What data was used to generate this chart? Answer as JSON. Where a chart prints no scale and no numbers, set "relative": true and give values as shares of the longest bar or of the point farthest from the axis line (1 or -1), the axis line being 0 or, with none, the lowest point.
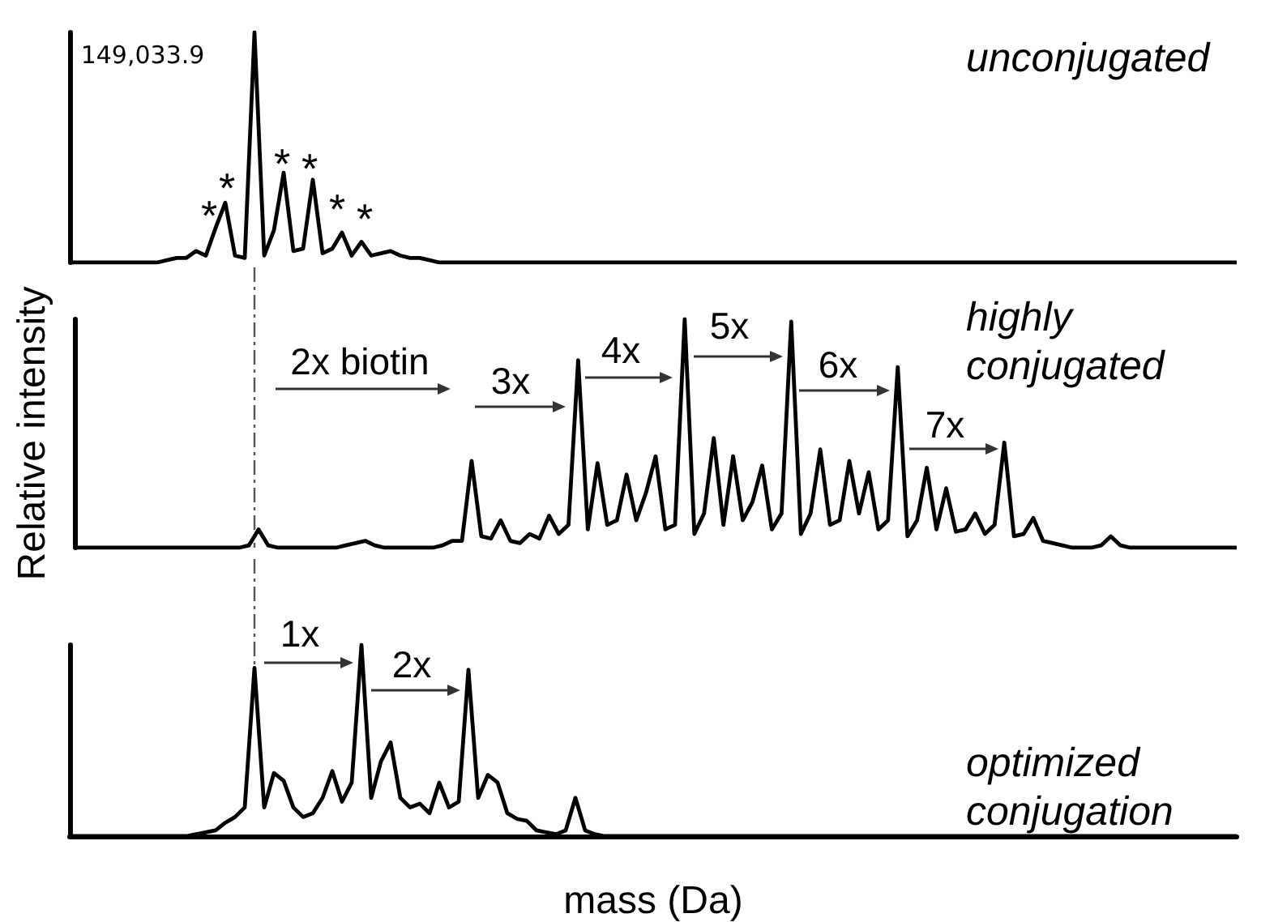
{
  "chart_data": [
    {
      "type": "line",
      "title": "unconjugated",
      "relative": true,
      "line_style": "solid",
      "annotations": [
        "149,033.9",
        "*",
        "*",
        "*",
        "*",
        "*",
        "*"
      ],
      "categories": [
        null,
        null,
        null,
        null,
        null,
        null,
        null,
        null,
        null,
        null,
        null,
        null,
        null,
        null,
        null,
        null,
        null,
        null,
        null,
        null,
        null,
        null,
        null,
        null,
        null,
        null,
        null,
        null,
        null,
        null,
        null,
        null,
        null,
        null,
        null,
        null,
        null,
        null,
        null,
        null,
        null,
        null,
        null,
        null,
        null,
        null,
        null,
        null,
        null,
        null,
        null,
        null,
        null,
        null,
        null,
        null,
        null,
        null,
        null,
        null,
        null,
        null,
        null,
        null,
        null,
        null,
        null,
        null,
        null,
        null,
        null,
        null,
        null,
        null,
        null,
        null,
        null,
        null,
        null,
        null,
        null,
        null,
        null,
        null,
        null,
        null,
        null,
        null,
        null,
        null,
        null,
        null,
        null,
        null,
        null,
        null,
        null,
        null,
        null,
        null,
        null,
        null,
        null,
        null,
        null,
        null,
        null,
        null,
        null,
        null,
        null,
        null,
        null,
        null,
        null,
        null,
        null,
        null,
        null,
        null,
        null
      ],
      "series": [
        {
          "color": "#000000",
          "values": [
            0,
            0,
            0,
            0,
            0,
            0,
            0,
            0,
            0,
            0,
            0.01,
            0.02,
            0.02,
            0.05,
            0.03,
            0.15,
            0.26,
            0.03,
            0.02,
            1,
            0.03,
            0.14,
            0.39,
            0.05,
            0.06,
            0.36,
            0.04,
            0.06,
            0.13,
            0.03,
            0.09,
            0.03,
            0.04,
            0.05,
            0.03,
            0.02,
            0.02,
            0.01,
            0,
            0,
            0,
            0,
            0,
            0,
            0,
            0,
            0,
            0,
            0,
            0,
            0,
            0,
            0,
            0,
            0,
            0,
            0,
            0,
            0,
            0,
            0,
            0,
            0,
            0,
            0,
            0,
            0,
            0,
            0,
            0,
            0,
            0,
            0,
            0,
            0,
            0,
            0,
            0,
            0,
            0,
            0,
            0,
            0,
            0,
            0,
            0,
            0,
            0,
            0,
            0,
            0,
            0,
            0,
            0,
            0,
            0,
            0,
            0,
            0,
            0,
            0,
            0,
            0,
            0,
            0,
            0,
            0,
            0,
            0,
            0,
            0,
            0,
            0,
            0,
            0,
            0,
            0,
            0,
            0,
            0,
            0
          ]
        }
      ]
    },
    {
      "type": "line",
      "title": "highly conjugated",
      "ylabel": "Relative intensity",
      "relative": true,
      "line_style": "solid",
      "annotations": [
        "2x biotin",
        "3x",
        "4x",
        "5x",
        "6x",
        "7x"
      ],
      "categories": [
        null,
        null,
        null,
        null,
        null,
        null,
        null,
        null,
        null,
        null,
        null,
        null,
        null,
        null,
        null,
        null,
        null,
        null,
        null,
        null,
        null,
        null,
        null,
        null,
        null,
        null,
        null,
        null,
        null,
        null,
        null,
        null,
        null,
        null,
        null,
        null,
        null,
        null,
        null,
        null,
        null,
        null,
        null,
        null,
        null,
        null,
        null,
        null,
        null,
        null,
        null,
        null,
        null,
        null,
        null,
        null,
        null,
        null,
        null,
        null,
        null,
        null,
        null,
        null,
        null,
        null,
        null,
        null,
        null,
        null,
        null,
        null,
        null,
        null,
        null,
        null,
        null,
        null,
        null,
        null,
        null,
        null,
        null,
        null,
        null,
        null,
        null,
        null,
        null,
        null,
        null,
        null,
        null,
        null,
        null,
        null,
        null,
        null,
        null,
        null,
        null,
        null,
        null,
        null,
        null,
        null,
        null,
        null,
        null,
        null,
        null,
        null,
        null,
        null,
        null,
        null,
        null,
        null,
        null,
        null,
        null
      ],
      "series": [
        {
          "color": "#000000",
          "values": [
            0,
            0,
            0,
            0,
            0,
            0,
            0,
            0,
            0,
            0,
            0,
            0,
            0,
            0,
            0,
            0,
            0,
            0,
            0.01,
            0.08,
            0.01,
            0,
            0,
            0,
            0,
            0,
            0,
            0,
            0.01,
            0.02,
            0.03,
            0.01,
            0,
            0,
            0,
            0,
            0,
            0,
            0.01,
            0.03,
            0.03,
            0.38,
            0.05,
            0.04,
            0.12,
            0.03,
            0.02,
            0.06,
            0.04,
            0.14,
            0.06,
            0.1,
            0.82,
            0.08,
            0.37,
            0.1,
            0.12,
            0.32,
            0.12,
            0.24,
            0.4,
            0.08,
            0.1,
            1,
            0.06,
            0.15,
            0.48,
            0.1,
            0.4,
            0.12,
            0.2,
            0.36,
            0.08,
            0.15,
            0.99,
            0.06,
            0.15,
            0.43,
            0.1,
            0.12,
            0.38,
            0.15,
            0.33,
            0.08,
            0.12,
            0.79,
            0.05,
            0.12,
            0.35,
            0.08,
            0.26,
            0.07,
            0.08,
            0.15,
            0.06,
            0.1,
            0.46,
            0.05,
            0.06,
            0.13,
            0.03,
            0.02,
            0.01,
            0,
            0,
            0,
            0.01,
            0.05,
            0.01,
            0,
            0,
            0,
            0,
            0,
            0,
            0,
            0,
            0,
            0,
            0,
            0
          ]
        }
      ]
    },
    {
      "type": "line",
      "title": "optimized conjugation",
      "xlabel": "mass (Da)",
      "relative": true,
      "line_style": "solid",
      "annotations": [
        "1x",
        "2x"
      ],
      "categories": [
        null,
        null,
        null,
        null,
        null,
        null,
        null,
        null,
        null,
        null,
        null,
        null,
        null,
        null,
        null,
        null,
        null,
        null,
        null,
        null,
        null,
        null,
        null,
        null,
        null,
        null,
        null,
        null,
        null,
        null,
        null,
        null,
        null,
        null,
        null,
        null,
        null,
        null,
        null,
        null,
        null,
        null,
        null,
        null,
        null,
        null,
        null,
        null,
        null,
        null,
        null,
        null,
        null,
        null,
        null,
        null,
        null,
        null,
        null,
        null,
        null,
        null,
        null,
        null,
        null,
        null,
        null,
        null,
        null,
        null,
        null,
        null,
        null,
        null,
        null,
        null,
        null,
        null,
        null,
        null,
        null,
        null,
        null,
        null,
        null,
        null,
        null,
        null,
        null,
        null,
        null,
        null,
        null,
        null,
        null,
        null,
        null,
        null,
        null,
        null,
        null,
        null,
        null,
        null,
        null,
        null,
        null,
        null,
        null,
        null,
        null,
        null,
        null,
        null,
        null,
        null,
        null,
        null,
        null,
        null,
        null
      ],
      "series": [
        {
          "color": "#000000",
          "values": [
            0,
            0,
            0,
            0,
            0,
            0,
            0,
            0,
            0,
            0,
            0,
            0,
            0,
            0.01,
            0.02,
            0.03,
            0.07,
            0.1,
            0.15,
            0.88,
            0.15,
            0.33,
            0.29,
            0.15,
            0.1,
            0.12,
            0.2,
            0.34,
            0.18,
            0.28,
            1,
            0.2,
            0.39,
            0.49,
            0.2,
            0.15,
            0.17,
            0.12,
            0.28,
            0.15,
            0.18,
            0.87,
            0.2,
            0.32,
            0.28,
            0.12,
            0.09,
            0.08,
            0.03,
            0.02,
            0.01,
            0.03,
            0.2,
            0.03,
            0.01,
            0,
            0,
            0,
            0,
            0,
            0,
            0,
            0,
            0,
            0,
            0,
            0,
            0,
            0,
            0,
            0,
            0,
            0,
            0,
            0,
            0,
            0,
            0,
            0,
            0,
            0,
            0,
            0,
            0,
            0,
            0,
            0,
            0,
            0,
            0,
            0,
            0,
            0,
            0,
            0,
            0,
            0,
            0,
            0,
            0,
            0,
            0,
            0,
            0,
            0,
            0,
            0,
            0,
            0,
            0,
            0,
            0,
            0,
            0,
            0,
            0,
            0,
            0,
            0,
            0,
            0
          ]
        }
      ]
    }
  ]
}
